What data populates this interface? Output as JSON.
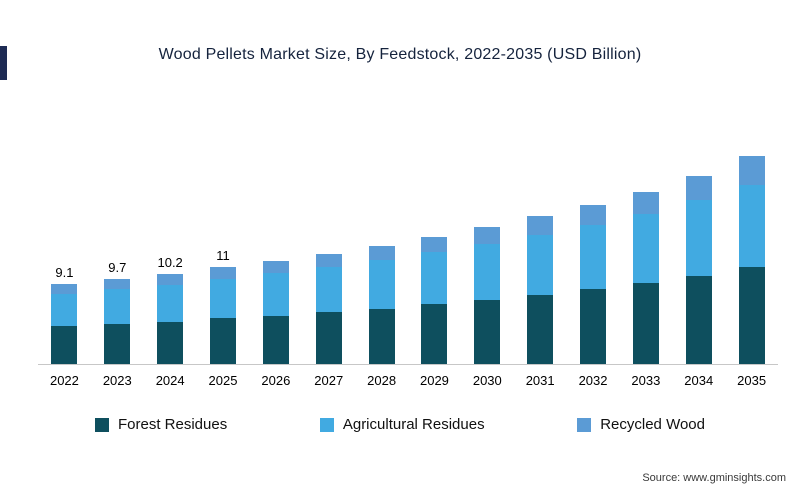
{
  "chart_data": {
    "type": "bar",
    "stacked": true,
    "title": "Wood Pellets Market Size, By Feedstock,  2022-2035 (USD Billion)",
    "ylabel": "",
    "xlabel": "",
    "grid": false,
    "legend_position": "bottom",
    "categories": [
      "2022",
      "2023",
      "2024",
      "2025",
      "2026",
      "2027",
      "2028",
      "2029",
      "2030",
      "2031",
      "2032",
      "2033",
      "2034",
      "2035"
    ],
    "series": [
      {
        "name": "Forest Residues",
        "key": "forest-residues",
        "color": "#0e4f5e",
        "values": [
          4.3,
          4.6,
          4.8,
          5.2,
          5.5,
          5.9,
          6.3,
          6.8,
          7.3,
          7.9,
          8.5,
          9.2,
          10.0,
          11.0
        ]
      },
      {
        "name": "Agricultural Residues",
        "key": "agricultural-residues",
        "color": "#41aae1",
        "values": [
          3.7,
          3.9,
          4.2,
          4.5,
          4.8,
          5.1,
          5.5,
          5.9,
          6.4,
          6.8,
          7.3,
          7.9,
          8.6,
          9.4
        ]
      },
      {
        "name": "Recycled Wood",
        "key": "recycled-wood",
        "color": "#5b9bd5",
        "values": [
          1.1,
          1.2,
          1.2,
          1.3,
          1.4,
          1.5,
          1.6,
          1.8,
          1.9,
          2.1,
          2.3,
          2.5,
          2.8,
          3.2
        ]
      }
    ],
    "totals": [
      9.1,
      9.7,
      10.2,
      11.0,
      11.7,
      12.5,
      13.4,
      14.5,
      15.6,
      16.8,
      18.1,
      19.6,
      21.4,
      23.6
    ],
    "bar_labels": [
      "9.1",
      "9.7",
      "10.2",
      "11",
      "",
      "",
      "",
      "",
      "",
      "",
      "",
      "",
      "",
      ""
    ]
  },
  "source": {
    "text": "Source: www.gminsights.com"
  },
  "accent": {
    "corner_color": "#1e2b54"
  }
}
